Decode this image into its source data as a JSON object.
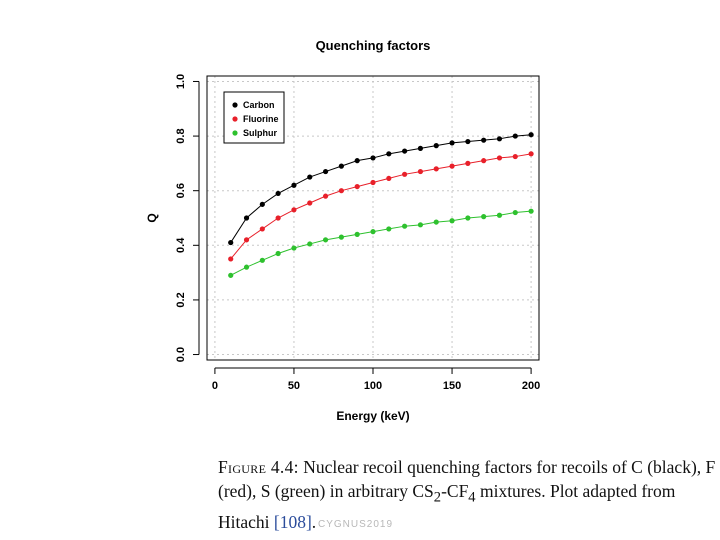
{
  "chart_data": {
    "type": "line",
    "title": "Quenching factors",
    "xlabel": "Energy (keV)",
    "ylabel": "Q",
    "xlim": [
      -5,
      205
    ],
    "ylim": [
      -0.02,
      1.02
    ],
    "xticks": [
      0,
      50,
      100,
      150,
      200
    ],
    "xtick_labels": [
      "0",
      "50",
      "100",
      "150",
      "200"
    ],
    "yticks": [
      0.0,
      0.2,
      0.4,
      0.6,
      0.8,
      1.0
    ],
    "ytick_labels": [
      "0.0",
      "0.2",
      "0.4",
      "0.6",
      "0.8",
      "1.0"
    ],
    "grid": true,
    "legend_position": "top-left",
    "x": [
      10,
      20,
      30,
      40,
      50,
      60,
      70,
      80,
      90,
      100,
      110,
      120,
      130,
      140,
      150,
      160,
      170,
      180,
      190,
      200
    ],
    "series": [
      {
        "name": "Carbon",
        "color": "#000000",
        "values": [
          0.41,
          0.5,
          0.55,
          0.59,
          0.62,
          0.65,
          0.67,
          0.69,
          0.71,
          0.72,
          0.735,
          0.745,
          0.755,
          0.765,
          0.775,
          0.78,
          0.785,
          0.79,
          0.8,
          0.805
        ]
      },
      {
        "name": "Fluorine",
        "color": "#e8202a",
        "values": [
          0.35,
          0.42,
          0.46,
          0.5,
          0.53,
          0.555,
          0.58,
          0.6,
          0.615,
          0.63,
          0.645,
          0.66,
          0.67,
          0.68,
          0.69,
          0.7,
          0.71,
          0.72,
          0.725,
          0.735
        ]
      },
      {
        "name": "Sulphur",
        "color": "#2ec12e",
        "values": [
          0.29,
          0.32,
          0.345,
          0.37,
          0.39,
          0.405,
          0.42,
          0.43,
          0.44,
          0.45,
          0.46,
          0.47,
          0.475,
          0.485,
          0.49,
          0.5,
          0.505,
          0.51,
          0.52,
          0.525
        ]
      }
    ]
  },
  "caption": {
    "label": "Figure 4.4:",
    "text_before": "Nuclear recoil quenching factors for recoils of C (black), F (red), S (green) in arbitrary CS",
    "sub1": "2",
    "text_middle": "-CF",
    "sub2": "4",
    "text_after": " mixtures. Plot adapted from Hitachi ",
    "citation": "[108]",
    "end": "."
  },
  "footer": {
    "text": "CYGNUS2019"
  }
}
